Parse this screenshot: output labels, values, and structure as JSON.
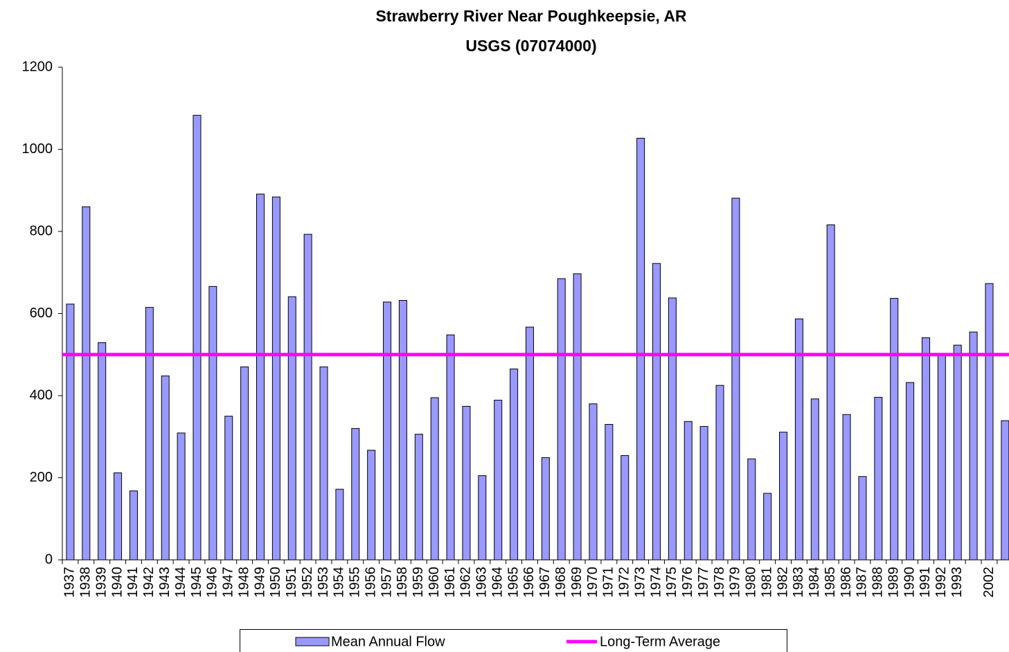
{
  "chart_data": {
    "type": "bar",
    "title": "Strawberry River Near Poughkeepsie, AR",
    "subtitle": "USGS (07074000)",
    "categories": [
      "1937",
      "1938",
      "1939",
      "1940",
      "1941",
      "1942",
      "1943",
      "1944",
      "1945",
      "1946",
      "1947",
      "1948",
      "1949",
      "1950",
      "1951",
      "1952",
      "1953",
      "1954",
      "1955",
      "1956",
      "1957",
      "1958",
      "1959",
      "1960",
      "1961",
      "1962",
      "1963",
      "1964",
      "1965",
      "1966",
      "1967",
      "1968",
      "1969",
      "1970",
      "1971",
      "1972",
      "1973",
      "1974",
      "1975",
      "1976",
      "1977",
      "1978",
      "1979",
      "1980",
      "1981",
      "1982",
      "1983",
      "1984",
      "1985",
      "1986",
      "1987",
      "1988",
      "1989",
      "1990",
      "1991",
      "1992",
      "1993",
      null,
      "2002",
      null
    ],
    "series": [
      {
        "name": "Mean Annual Flow",
        "color": "#9999ff",
        "values": [
          623,
          860,
          529,
          212,
          168,
          615,
          448,
          309,
          1083,
          666,
          350,
          470,
          891,
          884,
          641,
          793,
          470,
          172,
          320,
          267,
          628,
          632,
          306,
          395,
          548,
          374,
          205,
          389,
          465,
          567,
          249,
          685,
          697,
          380,
          330,
          254,
          1027,
          722,
          638,
          337,
          325,
          425,
          881,
          246,
          162,
          311,
          587,
          392,
          816,
          354,
          203,
          396,
          637,
          432,
          541,
          500,
          523,
          555,
          673,
          339
        ]
      }
    ],
    "reference_line": {
      "name": "Long-Term Average",
      "color": "#ff00ff",
      "value": 500
    },
    "ylim": [
      0,
      1200
    ],
    "yticks": [
      0,
      200,
      400,
      600,
      800,
      1000,
      1200
    ],
    "legend": "bottom"
  }
}
